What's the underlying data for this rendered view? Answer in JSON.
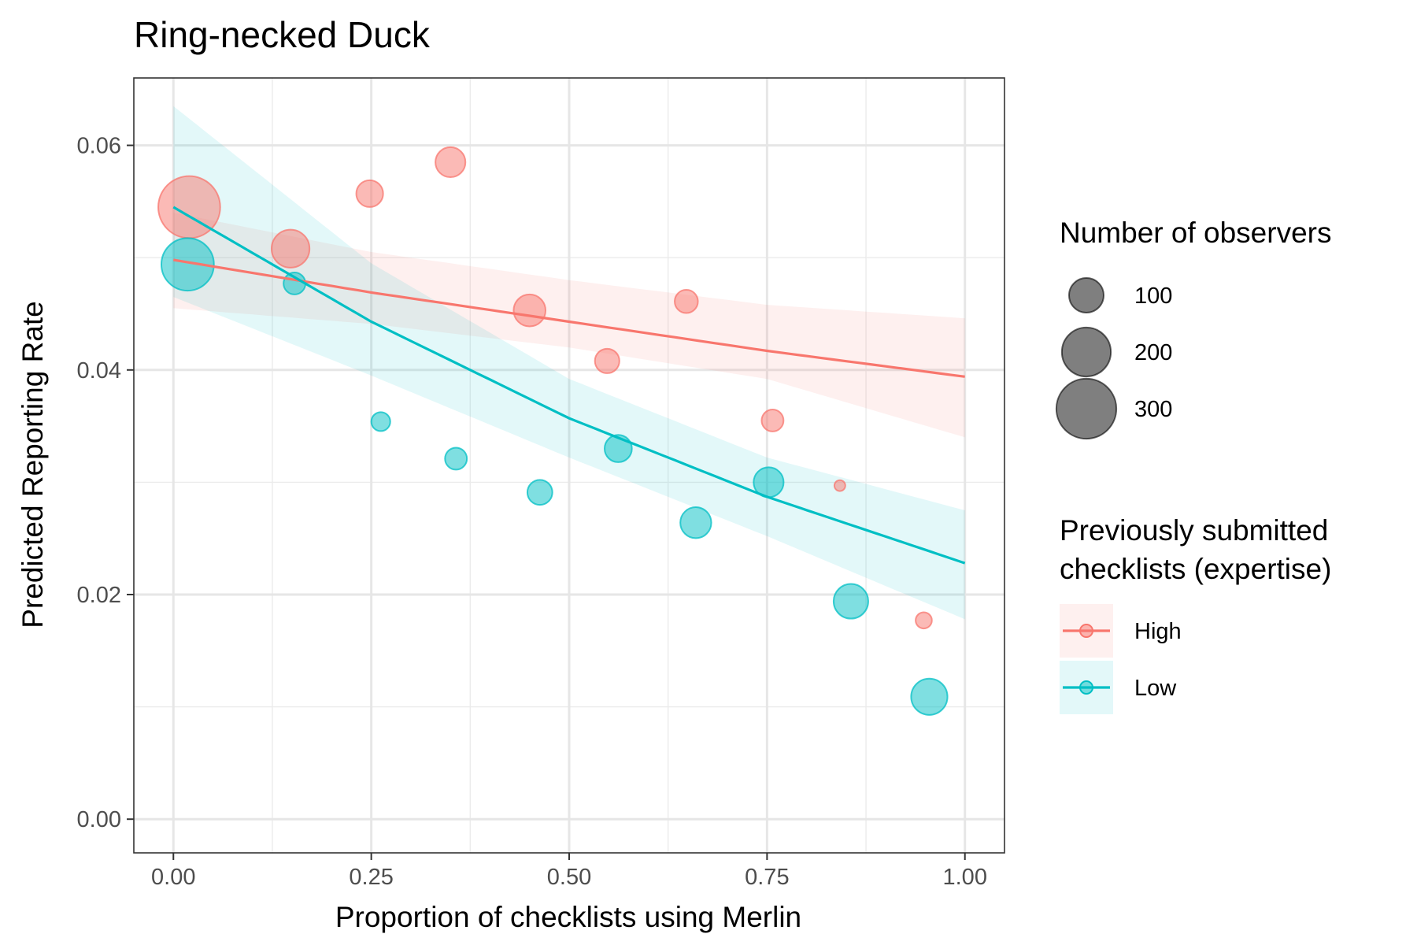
{
  "chart_data": {
    "type": "scatter",
    "title": "Ring-necked Duck",
    "xlabel": "Proportion of checklists using Merlin",
    "ylabel": "Predicted Reporting Rate",
    "xlim": [
      -0.05,
      1.05
    ],
    "ylim": [
      -0.003,
      0.066
    ],
    "x_ticks": [
      0.0,
      0.25,
      0.5,
      0.75,
      1.0
    ],
    "x_tick_labels": [
      "0.00",
      "0.25",
      "0.50",
      "0.75",
      "1.00"
    ],
    "y_ticks": [
      0.0,
      0.02,
      0.04,
      0.06
    ],
    "y_tick_labels": [
      "0.00",
      "0.02",
      "0.04",
      "0.06"
    ],
    "grid": true,
    "legend_position": "right",
    "size_legend": {
      "title": "Number of observers",
      "entries": [
        {
          "label": "100",
          "value": 100
        },
        {
          "label": "200",
          "value": 200
        },
        {
          "label": "300",
          "value": 300
        }
      ]
    },
    "color_legend": {
      "title_lines": [
        "Previously submitted",
        "checklists (expertise)"
      ],
      "entries": [
        {
          "label": "High",
          "color": "#F8766D"
        },
        {
          "label": "Low",
          "color": "#00BFC4"
        }
      ]
    },
    "series": [
      {
        "name": "High",
        "color": "#F8766D",
        "points": [
          {
            "x": 0.02,
            "y": 0.0545,
            "size": 320
          },
          {
            "x": 0.148,
            "y": 0.0508,
            "size": 120
          },
          {
            "x": 0.248,
            "y": 0.0557,
            "size": 60
          },
          {
            "x": 0.35,
            "y": 0.0585,
            "size": 75
          },
          {
            "x": 0.45,
            "y": 0.0453,
            "size": 85
          },
          {
            "x": 0.548,
            "y": 0.0408,
            "size": 50
          },
          {
            "x": 0.648,
            "y": 0.0461,
            "size": 45
          },
          {
            "x": 0.757,
            "y": 0.0355,
            "size": 40
          },
          {
            "x": 0.842,
            "y": 0.0297,
            "size": 10
          },
          {
            "x": 0.948,
            "y": 0.0177,
            "size": 22
          }
        ],
        "fit_x": [
          0.0,
          0.25,
          0.5,
          0.75,
          1.0
        ],
        "fit_y": [
          0.0498,
          0.0469,
          0.0443,
          0.0417,
          0.0394
        ],
        "ci_lower": [
          0.0455,
          0.0441,
          0.042,
          0.0392,
          0.034
        ],
        "ci_upper": [
          0.054,
          0.0505,
          0.048,
          0.0458,
          0.0446
        ]
      },
      {
        "name": "Low",
        "color": "#00BFC4",
        "points": [
          {
            "x": 0.018,
            "y": 0.0494,
            "size": 230
          },
          {
            "x": 0.153,
            "y": 0.0477,
            "size": 40
          },
          {
            "x": 0.262,
            "y": 0.0354,
            "size": 30
          },
          {
            "x": 0.357,
            "y": 0.0321,
            "size": 40
          },
          {
            "x": 0.463,
            "y": 0.0291,
            "size": 52
          },
          {
            "x": 0.562,
            "y": 0.033,
            "size": 62
          },
          {
            "x": 0.66,
            "y": 0.0264,
            "size": 80
          },
          {
            "x": 0.752,
            "y": 0.03,
            "size": 75
          },
          {
            "x": 0.856,
            "y": 0.0194,
            "size": 100
          },
          {
            "x": 0.955,
            "y": 0.0109,
            "size": 110
          }
        ],
        "fit_x": [
          0.0,
          0.25,
          0.5,
          0.75,
          1.0
        ],
        "fit_y": [
          0.0545,
          0.0443,
          0.0357,
          0.0287,
          0.0228
        ],
        "ci_lower": [
          0.0465,
          0.0395,
          0.0322,
          0.0252,
          0.0178
        ],
        "ci_upper": [
          0.0635,
          0.0495,
          0.0392,
          0.0322,
          0.0275
        ]
      }
    ]
  }
}
